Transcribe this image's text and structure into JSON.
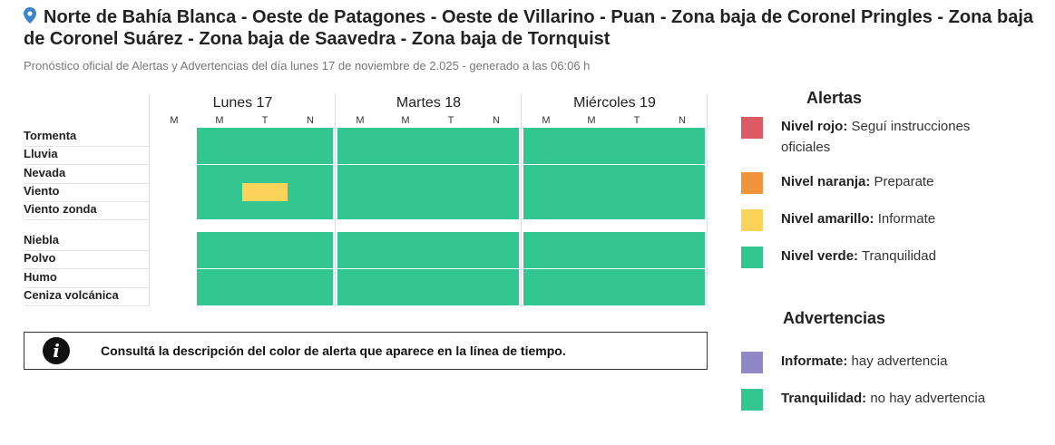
{
  "header": {
    "title": "Norte de Bahía Blanca - Oeste de Patagones - Oeste de Villarino - Puan - Zona baja de Coronel Pringles - Zona baja de Coronel Suárez - Zona baja de Saavedra - Zona baja de Tornquist",
    "subtitle": "Pronóstico oficial de Alertas y Advertencias del día lunes 17 de noviembre de 2.025 - generado a las 06:06 h",
    "icon": "map-pin-icon"
  },
  "colors": {
    "rojo": "#dc5a64",
    "naranja": "#f2943c",
    "amarillo": "#fdd35a",
    "verde": "#33c690",
    "violeta": "#8f87c6"
  },
  "timeline": {
    "days": [
      {
        "label": "Lunes 17",
        "periods": [
          "M",
          "M",
          "T",
          "N"
        ]
      },
      {
        "label": "Martes 18",
        "periods": [
          "M",
          "M",
          "T",
          "N"
        ]
      },
      {
        "label": "Miércoles 19",
        "periods": [
          "M",
          "M",
          "T",
          "N"
        ]
      }
    ],
    "groups": [
      [
        {
          "label": "Tormenta",
          "levels": [
            "none",
            "verde",
            "verde",
            "verde",
            "verde",
            "verde",
            "verde",
            "verde",
            "verde",
            "verde",
            "verde",
            "verde"
          ]
        },
        {
          "label": "Lluvia",
          "levels": [
            "none",
            "verde",
            "verde",
            "verde",
            "verde",
            "verde",
            "verde",
            "verde",
            "verde",
            "verde",
            "verde",
            "verde"
          ]
        },
        {
          "label": "Nevada",
          "levels": [
            "none",
            "verde",
            "verde",
            "verde",
            "verde",
            "verde",
            "verde",
            "verde",
            "verde",
            "verde",
            "verde",
            "verde"
          ]
        },
        {
          "label": "Viento",
          "levels": [
            "none",
            "verde",
            "amarillo",
            "verde",
            "verde",
            "verde",
            "verde",
            "verde",
            "verde",
            "verde",
            "verde",
            "verde"
          ]
        },
        {
          "label": "Viento zonda",
          "levels": [
            "none",
            "verde",
            "verde",
            "verde",
            "verde",
            "verde",
            "verde",
            "verde",
            "verde",
            "verde",
            "verde",
            "verde"
          ]
        }
      ],
      [
        {
          "label": "Niebla",
          "levels": [
            "none",
            "verde",
            "verde",
            "verde",
            "verde",
            "verde",
            "verde",
            "verde",
            "verde",
            "verde",
            "verde",
            "verde"
          ]
        },
        {
          "label": "Polvo",
          "levels": [
            "none",
            "verde",
            "verde",
            "verde",
            "verde",
            "verde",
            "verde",
            "verde",
            "verde",
            "verde",
            "verde",
            "verde"
          ]
        },
        {
          "label": "Humo",
          "levels": [
            "none",
            "verde",
            "verde",
            "verde",
            "verde",
            "verde",
            "verde",
            "verde",
            "verde",
            "verde",
            "verde",
            "verde"
          ]
        },
        {
          "label": "Ceniza volcánica",
          "levels": [
            "none",
            "verde",
            "verde",
            "verde",
            "verde",
            "verde",
            "verde",
            "verde",
            "verde",
            "verde",
            "verde",
            "verde"
          ]
        }
      ]
    ]
  },
  "info": {
    "icon": "info-icon",
    "text": "Consultá la descripción del color de alerta que aparece en la línea de tiempo."
  },
  "legend": {
    "alertas_title": "Alertas",
    "alertas": [
      {
        "key": "rojo",
        "name": "Nivel rojo:",
        "desc": "Seguí instrucciones oficiales"
      },
      {
        "key": "naranja",
        "name": "Nivel naranja:",
        "desc": "Preparate"
      },
      {
        "key": "amarillo",
        "name": "Nivel amarillo:",
        "desc": "Informate"
      },
      {
        "key": "verde",
        "name": "Nivel verde:",
        "desc": "Tranquilidad"
      }
    ],
    "advertencias_title": "Advertencias",
    "advertencias": [
      {
        "key": "violeta",
        "name": "Informate:",
        "desc": "hay advertencia"
      },
      {
        "key": "verde",
        "name": "Tranquilidad:",
        "desc": "no hay advertencia"
      }
    ]
  }
}
